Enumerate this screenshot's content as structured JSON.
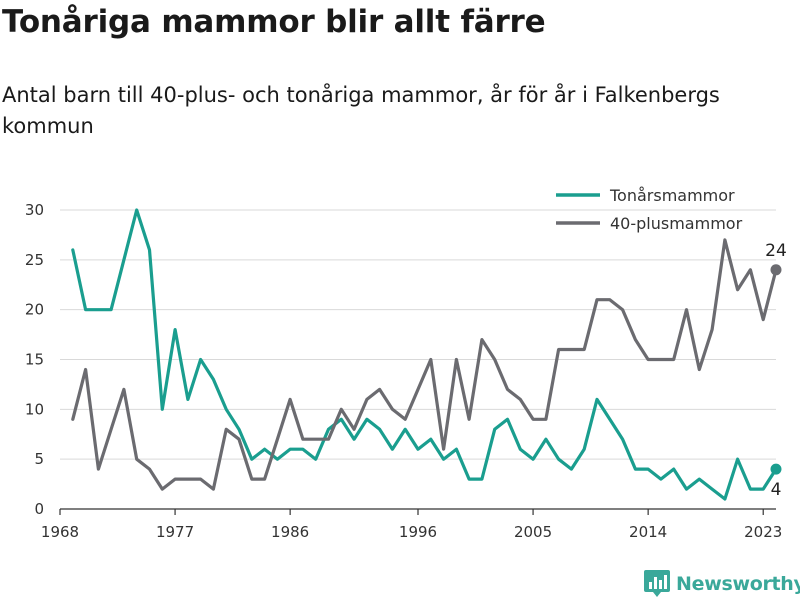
{
  "chart_data": {
    "type": "line",
    "title": "Tonåriga mammor blir allt färre",
    "subtitle": "Antal barn till 40-plus- och tonåriga mammor, år för år i Falkenbergs kommun",
    "xlabel": "",
    "ylabel": "",
    "xlim": [
      1968,
      2024
    ],
    "ylim": [
      0,
      30
    ],
    "x_ticks": [
      1968,
      1977,
      1986,
      1996,
      2005,
      2014,
      2023
    ],
    "y_ticks": [
      0,
      5,
      10,
      15,
      20,
      25,
      30
    ],
    "grid": "horizontal",
    "legend_position": "top-right",
    "x": [
      1969,
      1970,
      1971,
      1972,
      1973,
      1974,
      1975,
      1976,
      1977,
      1978,
      1979,
      1980,
      1981,
      1982,
      1983,
      1984,
      1985,
      1986,
      1987,
      1988,
      1989,
      1990,
      1991,
      1992,
      1993,
      1994,
      1995,
      1996,
      1997,
      1998,
      1999,
      2000,
      2001,
      2002,
      2003,
      2004,
      2005,
      2006,
      2007,
      2008,
      2009,
      2010,
      2011,
      2012,
      2013,
      2014,
      2015,
      2016,
      2017,
      2018,
      2019,
      2020,
      2021,
      2022,
      2023,
      2024
    ],
    "series": [
      {
        "name": "Tonårsmammor",
        "color": "#1a9e8f",
        "values": [
          26,
          20,
          20,
          20,
          25,
          30,
          26,
          10,
          18,
          11,
          15,
          13,
          10,
          8,
          5,
          6,
          5,
          6,
          6,
          5,
          8,
          9,
          7,
          9,
          8,
          6,
          8,
          6,
          7,
          5,
          6,
          3,
          3,
          8,
          9,
          6,
          5,
          7,
          5,
          4,
          6,
          11,
          9,
          7,
          4,
          4,
          3,
          4,
          2,
          3,
          2,
          1,
          5,
          2,
          2,
          4
        ],
        "end_label": "4"
      },
      {
        "name": "40-plusmammor",
        "color": "#6b6b70",
        "values": [
          9,
          14,
          4,
          8,
          12,
          5,
          4,
          2,
          3,
          3,
          3,
          2,
          8,
          7,
          3,
          3,
          7,
          11,
          7,
          7,
          7,
          10,
          8,
          11,
          12,
          10,
          9,
          12,
          15,
          6,
          15,
          9,
          17,
          15,
          12,
          11,
          9,
          9,
          16,
          16,
          16,
          21,
          21,
          20,
          17,
          15,
          15,
          15,
          20,
          14,
          18,
          27,
          22,
          24,
          19,
          24
        ],
        "end_label": "24"
      }
    ]
  },
  "brand": {
    "name": "Newsworthy",
    "color": "#3aa89a",
    "icon": "bar-chart-icon"
  }
}
